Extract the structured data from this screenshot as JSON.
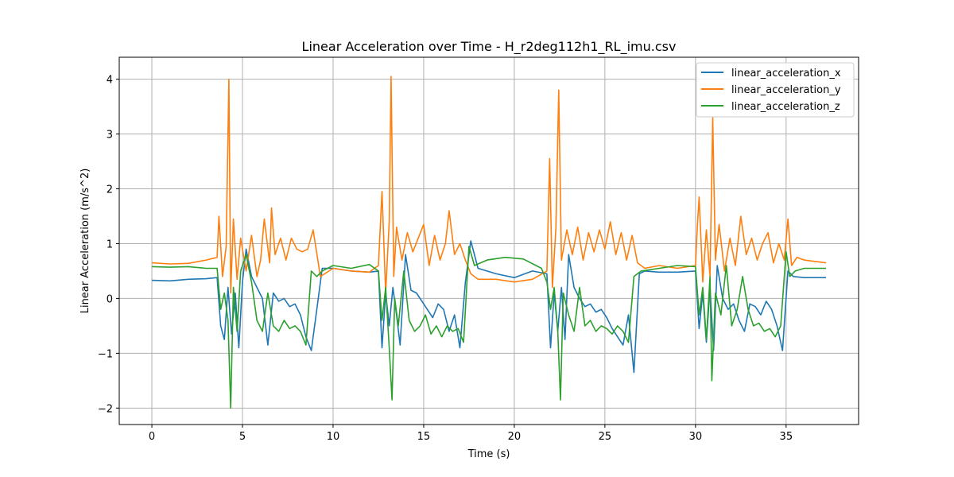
{
  "chart_data": {
    "type": "line",
    "title": "Linear Acceleration over Time - H_r2deg112h1_RL_imu.csv",
    "xlabel": "Time (s)",
    "ylabel": "Linear Acceleration (m/s^2)",
    "xlim": [
      -1.8,
      39.0
    ],
    "ylim": [
      -2.3,
      4.4
    ],
    "xticks": [
      0,
      5,
      10,
      15,
      20,
      25,
      30,
      35
    ],
    "xtick_labels": [
      "0",
      "5",
      "10",
      "15",
      "20",
      "25",
      "30",
      "35"
    ],
    "yticks": [
      -2,
      -1,
      0,
      1,
      2,
      3,
      4
    ],
    "ytick_labels": [
      "−2",
      "−1",
      "0",
      "1",
      "2",
      "3",
      "4"
    ],
    "grid": true,
    "legend_position": "top-right",
    "series": [
      {
        "name": "linear_acceleration_x",
        "color": "#1f77b4",
        "x": [
          0,
          1,
          2,
          3,
          3.6,
          3.8,
          4.0,
          4.2,
          4.4,
          4.6,
          4.8,
          5.0,
          5.2,
          5.5,
          5.8,
          6.1,
          6.4,
          6.7,
          7.0,
          7.3,
          7.6,
          7.9,
          8.2,
          8.5,
          8.8,
          9.1,
          9.4,
          10,
          11,
          12,
          12.5,
          12.7,
          12.9,
          13.1,
          13.3,
          13.5,
          13.7,
          14.0,
          14.3,
          14.6,
          14.9,
          15.2,
          15.5,
          15.8,
          16.1,
          16.4,
          16.7,
          17.0,
          17.3,
          17.6,
          18.0,
          19,
          20,
          21,
          21.8,
          22.0,
          22.2,
          22.4,
          22.6,
          22.8,
          23.0,
          23.3,
          23.6,
          23.9,
          24.2,
          24.5,
          24.8,
          25.1,
          25.4,
          25.7,
          26.0,
          26.3,
          26.6,
          26.9,
          27.2,
          28,
          29,
          30,
          30.2,
          30.4,
          30.6,
          30.8,
          31.0,
          31.2,
          31.5,
          31.8,
          32.1,
          32.4,
          32.7,
          33.0,
          33.3,
          33.6,
          33.9,
          34.2,
          34.5,
          34.8,
          35.1,
          35.4,
          36,
          37.2
        ],
        "y": [
          0.33,
          0.32,
          0.35,
          0.36,
          0.38,
          -0.5,
          -0.75,
          0.2,
          -0.65,
          0.1,
          -0.9,
          0.3,
          0.9,
          0.4,
          0.2,
          0.0,
          -0.85,
          0.1,
          -0.05,
          0.0,
          -0.15,
          -0.1,
          -0.3,
          -0.7,
          -0.95,
          -0.2,
          0.55,
          0.55,
          0.5,
          0.48,
          0.5,
          -0.9,
          0.1,
          -0.5,
          0.2,
          -0.3,
          -0.85,
          0.8,
          0.15,
          0.1,
          -0.05,
          -0.2,
          -0.35,
          -0.1,
          -0.2,
          -0.6,
          -0.3,
          -0.9,
          0.3,
          1.05,
          0.55,
          0.45,
          0.38,
          0.5,
          0.45,
          -0.9,
          0.1,
          -0.6,
          0.2,
          -0.75,
          0.8,
          0.2,
          0.0,
          -0.15,
          -0.1,
          -0.25,
          -0.2,
          -0.35,
          -0.55,
          -0.7,
          -0.85,
          -0.3,
          -1.35,
          0.45,
          0.5,
          0.48,
          0.48,
          0.5,
          -0.55,
          0.1,
          -0.8,
          0.2,
          -0.95,
          0.6,
          0.0,
          -0.2,
          -0.1,
          -0.4,
          -0.6,
          -0.1,
          -0.15,
          -0.3,
          -0.05,
          -0.2,
          -0.5,
          -0.95,
          0.5,
          0.4,
          0.38,
          0.38
        ]
      },
      {
        "name": "linear_acceleration_y",
        "color": "#ff7f0e",
        "x": [
          0,
          1,
          2,
          3,
          3.6,
          3.7,
          3.9,
          4.1,
          4.25,
          4.35,
          4.5,
          4.7,
          4.9,
          5.2,
          5.5,
          5.8,
          6.0,
          6.2,
          6.5,
          6.6,
          6.8,
          7.1,
          7.4,
          7.7,
          8.0,
          8.3,
          8.6,
          8.9,
          9.3,
          10,
          11,
          12,
          12.5,
          12.7,
          12.9,
          13.1,
          13.2,
          13.35,
          13.5,
          13.8,
          14.1,
          14.4,
          14.7,
          15.0,
          15.3,
          15.6,
          15.9,
          16.2,
          16.4,
          16.7,
          17.0,
          17.3,
          17.6,
          18,
          19,
          20,
          21,
          21.8,
          21.95,
          22.1,
          22.3,
          22.45,
          22.6,
          22.9,
          23.2,
          23.5,
          23.8,
          24.1,
          24.4,
          24.7,
          25.0,
          25.3,
          25.6,
          25.9,
          26.2,
          26.5,
          26.8,
          27.2,
          28,
          29,
          30,
          30.1,
          30.2,
          30.4,
          30.6,
          30.8,
          30.95,
          31.1,
          31.3,
          31.6,
          31.9,
          32.2,
          32.5,
          32.8,
          33.1,
          33.4,
          33.7,
          34.0,
          34.3,
          34.6,
          34.9,
          35.1,
          35.3,
          35.6,
          36,
          37.2
        ],
        "y": [
          0.65,
          0.63,
          0.64,
          0.7,
          0.75,
          1.5,
          0.4,
          0.95,
          4.0,
          0.1,
          1.45,
          0.35,
          1.1,
          0.5,
          1.15,
          0.4,
          0.7,
          1.45,
          0.65,
          1.65,
          0.8,
          1.1,
          0.7,
          1.1,
          0.9,
          0.85,
          0.9,
          1.25,
          0.4,
          0.55,
          0.5,
          0.48,
          0.6,
          1.95,
          0.1,
          1.4,
          4.05,
          0.4,
          1.3,
          0.7,
          1.2,
          0.85,
          1.1,
          1.35,
          0.6,
          1.15,
          0.7,
          1.0,
          1.6,
          0.8,
          1.0,
          0.7,
          0.45,
          0.35,
          0.35,
          0.3,
          0.35,
          0.5,
          2.55,
          0.2,
          1.3,
          3.8,
          0.7,
          1.25,
          0.8,
          1.3,
          0.7,
          1.2,
          0.85,
          1.25,
          0.9,
          1.4,
          0.8,
          1.2,
          0.7,
          1.15,
          0.65,
          0.55,
          0.6,
          0.55,
          0.6,
          1.3,
          1.85,
          0.3,
          1.25,
          0.4,
          3.3,
          0.7,
          1.35,
          0.5,
          1.1,
          0.6,
          1.5,
          0.8,
          1.1,
          0.7,
          1.0,
          1.2,
          0.65,
          1.0,
          0.7,
          1.45,
          0.6,
          0.75,
          0.7,
          0.65
        ]
      },
      {
        "name": "linear_acceleration_z",
        "color": "#2ca02c",
        "x": [
          0,
          1,
          2,
          3,
          3.6,
          3.8,
          4.0,
          4.2,
          4.35,
          4.5,
          4.7,
          4.9,
          5.2,
          5.5,
          5.8,
          6.1,
          6.4,
          6.7,
          7.0,
          7.3,
          7.6,
          7.9,
          8.2,
          8.5,
          8.8,
          9.1,
          9.4,
          10,
          11,
          12,
          12.5,
          12.7,
          12.9,
          13.1,
          13.25,
          13.4,
          13.6,
          13.9,
          14.2,
          14.5,
          14.8,
          15.1,
          15.4,
          15.7,
          16.0,
          16.3,
          16.6,
          16.9,
          17.2,
          17.5,
          17.8,
          18.5,
          19.5,
          20.5,
          21.5,
          21.8,
          22.0,
          22.2,
          22.4,
          22.55,
          22.7,
          23.0,
          23.3,
          23.6,
          23.9,
          24.2,
          24.5,
          24.8,
          25.1,
          25.4,
          25.7,
          26.0,
          26.3,
          26.6,
          27.0,
          28,
          29,
          30,
          30.2,
          30.4,
          30.6,
          30.8,
          30.9,
          31.1,
          31.4,
          31.7,
          32.0,
          32.3,
          32.6,
          32.9,
          33.2,
          33.5,
          33.8,
          34.1,
          34.4,
          34.7,
          35.0,
          35.2,
          35.5,
          36,
          37.2
        ],
        "y": [
          0.58,
          0.57,
          0.58,
          0.55,
          0.55,
          -0.2,
          0.1,
          -0.4,
          -2.0,
          0.2,
          -0.6,
          0.5,
          0.8,
          0.3,
          -0.4,
          -0.6,
          0.1,
          -0.5,
          -0.6,
          -0.4,
          -0.55,
          -0.5,
          -0.6,
          -0.85,
          0.5,
          0.4,
          0.5,
          0.6,
          0.55,
          0.62,
          0.5,
          -0.4,
          0.2,
          -0.9,
          -1.85,
          0.0,
          -0.5,
          0.5,
          -0.4,
          -0.6,
          -0.5,
          -0.3,
          -0.65,
          -0.5,
          -0.7,
          -0.5,
          -0.6,
          -0.55,
          -0.8,
          0.95,
          0.6,
          0.7,
          0.75,
          0.72,
          0.55,
          0.3,
          -0.2,
          0.2,
          -0.6,
          -1.85,
          0.1,
          -0.3,
          -0.6,
          0.2,
          -0.5,
          -0.4,
          -0.6,
          -0.5,
          -0.55,
          -0.65,
          -0.5,
          -0.6,
          -0.8,
          0.4,
          0.5,
          0.55,
          0.6,
          0.58,
          -0.3,
          0.2,
          -0.75,
          0.4,
          -1.5,
          0.1,
          -0.3,
          0.6,
          -0.5,
          -0.2,
          0.4,
          -0.2,
          -0.5,
          -0.45,
          -0.6,
          -0.55,
          -0.7,
          -0.5,
          0.85,
          0.4,
          0.5,
          0.55,
          0.55
        ]
      }
    ]
  }
}
